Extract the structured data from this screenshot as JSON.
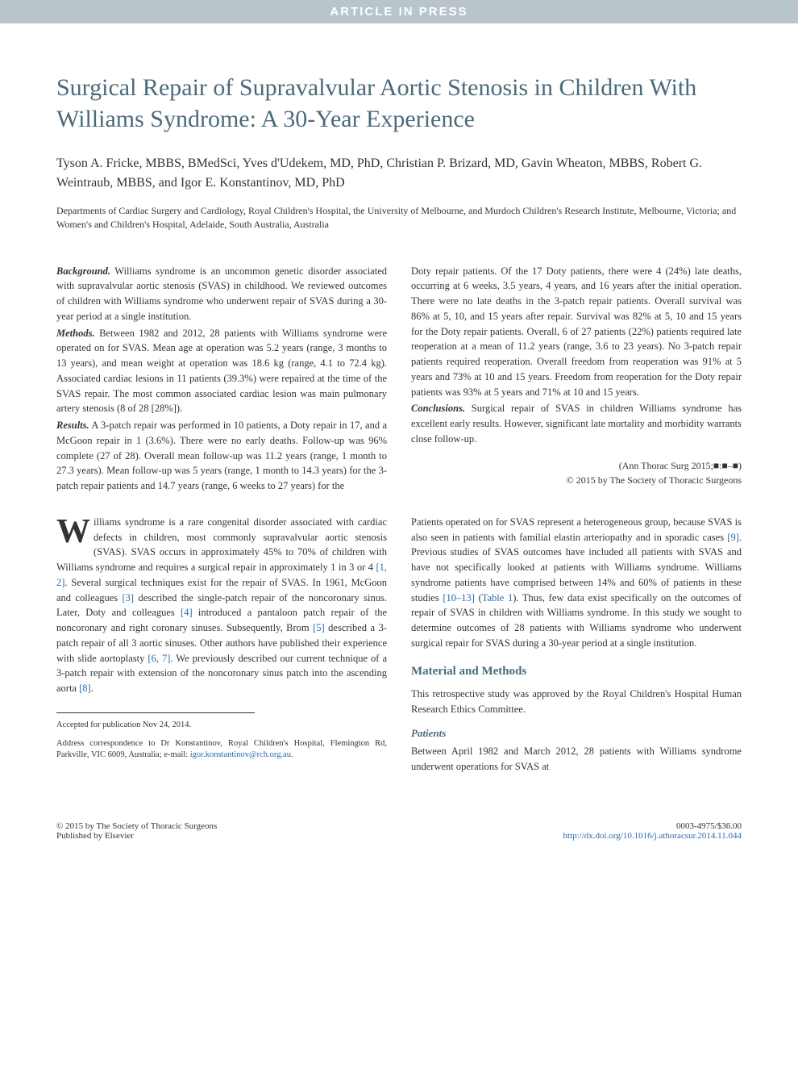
{
  "header_bar": "ARTICLE IN PRESS",
  "title": "Surgical Repair of Supravalvular Aortic Stenosis in Children With Williams Syndrome: A 30-Year Experience",
  "authors": "Tyson A. Fricke, MBBS, BMedSci, Yves d'Udekem, MD, PhD, Christian P. Brizard, MD, Gavin Wheaton, MBBS, Robert G. Weintraub, MBBS, and Igor E. Konstantinov, MD, PhD",
  "affiliations": "Departments of Cardiac Surgery and Cardiology, Royal Children's Hospital, the University of Melbourne, and Murdoch Children's Research Institute, Melbourne, Victoria; and Women's and Children's Hospital, Adelaide, South Australia, Australia",
  "abstract": {
    "background_label": "Background.",
    "background_text": " Williams syndrome is an uncommon genetic disorder associated with supravalvular aortic stenosis (SVAS) in childhood. We reviewed outcomes of children with Williams syndrome who underwent repair of SVAS during a 30-year period at a single institution.",
    "methods_label": "Methods.",
    "methods_text": " Between 1982 and 2012, 28 patients with Williams syndrome were operated on for SVAS. Mean age at operation was 5.2 years (range, 3 months to 13 years), and mean weight at operation was 18.6 kg (range, 4.1 to 72.4 kg). Associated cardiac lesions in 11 patients (39.3%) were repaired at the time of the SVAS repair. The most common associated cardiac lesion was main pulmonary artery stenosis (8 of 28 [28%]).",
    "results_label": "Results.",
    "results_text": " A 3-patch repair was performed in 10 patients, a Doty repair in 17, and a McGoon repair in 1 (3.6%). There were no early deaths. Follow-up was 96% complete (27 of 28). Overall mean follow-up was 11.2 years (range, 1 month to 27.3 years). Mean follow-up was 5 years (range, 1 month to 14.3 years) for the 3-patch repair patients and 14.7 years (range, 6 weeks to 27 years) for the",
    "results_cont": "Doty repair patients. Of the 17 Doty patients, there were 4 (24%) late deaths, occurring at 6 weeks, 3.5 years, 4 years, and 16 years after the initial operation. There were no late deaths in the 3-patch repair patients. Overall survival was 86% at 5, 10, and 15 years after repair. Survival was 82% at 5, 10 and 15 years for the Doty repair patients. Overall, 6 of 27 patients (22%) patients required late reoperation at a mean of 11.2 years (range, 3.6 to 23 years). No 3-patch repair patients required reoperation. Overall freedom from reoperation was 91% at 5 years and 73% at 10 and 15 years. Freedom from reoperation for the Doty repair patients was 93% at 5 years and 71% at 10 and 15 years.",
    "conclusions_label": "Conclusions.",
    "conclusions_text": " Surgical repair of SVAS in children Williams syndrome has excellent early results. However, significant late mortality and morbidity warrants close follow-up."
  },
  "citation": {
    "journal": "(Ann Thorac Surg 2015;■:■–■)",
    "copyright": "© 2015 by The Society of Thoracic Surgeons"
  },
  "body": {
    "dropcap": "W",
    "intro_para1": "illiams syndrome is a rare congenital disorder associated with cardiac defects in children, most commonly supravalvular aortic stenosis (SVAS). SVAS occurs in approximately 45% to 70% of children with Williams syndrome and requires a surgical repair in approximately 1 in 3 or 4 ",
    "ref12": "[1, 2]",
    "intro_para1b": ". Several surgical techniques exist for the repair of SVAS. In 1961, McGoon and colleagues ",
    "ref3": "[3]",
    "intro_para1c": " described the single-patch repair of the noncoronary sinus. Later, Doty and colleagues ",
    "ref4": "[4]",
    "intro_para1d": " introduced a pantaloon patch repair of the noncoronary and right coronary sinuses. Subsequently, Brom ",
    "ref5": "[5]",
    "intro_para1e": " described a 3-patch repair of all 3 aortic sinuses. Other authors have published their experience with slide aortoplasty ",
    "ref67": "[6, 7]",
    "intro_para1f": ". We previously described our current technique of a 3-patch repair with extension of the noncoronary sinus patch into the ascending aorta ",
    "ref8": "[8]",
    "intro_para1g": ".",
    "intro_para2a": "Patients operated on for SVAS represent a heterogeneous group, because SVAS is also seen in patients with familial elastin arteriopathy and in sporadic cases ",
    "ref9": "[9]",
    "intro_para2b": ". Previous studies of SVAS outcomes have included all patients with SVAS and have not specifically looked at patients with Williams syndrome. Williams syndrome patients have comprised between 14% and 60% of patients in these studies ",
    "ref1013": "[10–13]",
    "intro_para2c": " (",
    "table1": "Table 1",
    "intro_para2d": "). Thus, few data exist specifically on the outcomes of repair of SVAS in children with Williams syndrome. In this study we sought to determine outcomes of 28 patients with Williams syndrome who underwent surgical repair for SVAS during a 30-year period at a single institution.",
    "section_mm": "Material and Methods",
    "mm_para": "This retrospective study was approved by the Royal Children's Hospital Human Research Ethics Committee.",
    "subsection_patients": "Patients",
    "patients_para": "Between April 1982 and March 2012, 28 patients with Williams syndrome underwent operations for SVAS at"
  },
  "footnotes": {
    "accepted": "Accepted for publication Nov 24, 2014.",
    "correspondence_pre": "Address correspondence to Dr Konstantinov, Royal Children's Hospital, Flemington Rd, Parkville, VIC 6009, Australia; e-mail: ",
    "email": "igor.konstantinov@rch.org.au",
    "period": "."
  },
  "footer": {
    "left1": "© 2015 by The Society of Thoracic Surgeons",
    "left2": "Published by Elsevier",
    "right1": "0003-4975/$36.00",
    "doi": "http://dx.doi.org/10.1016/j.athoracsur.2014.11.044"
  },
  "colors": {
    "header_bg": "#b8c5ca",
    "title_color": "#4a6b7a",
    "link_color": "#2a6aa8",
    "text_color": "#333333",
    "background": "#ffffff"
  },
  "typography": {
    "title_fontsize": 30,
    "author_fontsize": 16,
    "affiliation_fontsize": 12,
    "body_fontsize": 12.5,
    "footnote_fontsize": 10.5,
    "footer_fontsize": 11
  }
}
